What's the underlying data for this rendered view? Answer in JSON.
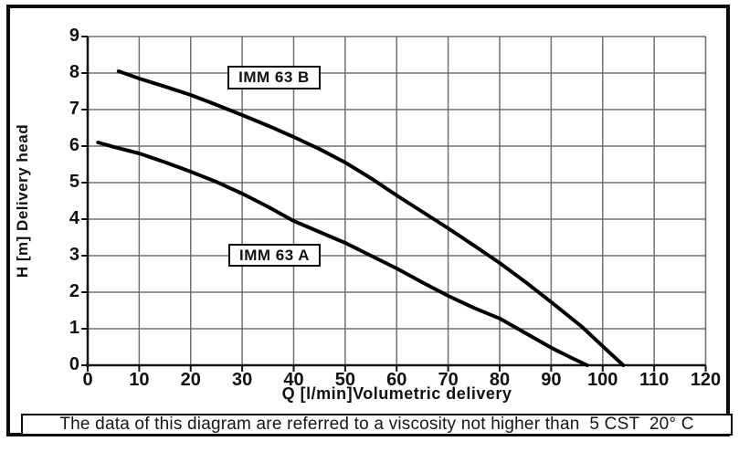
{
  "chart_data": {
    "type": "line",
    "xlabel": "Q [l/min]Volumetric delivery",
    "ylabel": "H [m] Delivery head",
    "xlim": [
      0,
      120
    ],
    "ylim": [
      0,
      9
    ],
    "x_ticks": [
      0,
      10,
      20,
      30,
      40,
      50,
      60,
      70,
      80,
      90,
      100,
      110,
      120
    ],
    "y_ticks": [
      0,
      1,
      2,
      3,
      4,
      5,
      6,
      7,
      8,
      9
    ],
    "grid": true,
    "legend_position": "boxed-labels-on-plot",
    "line_color": "#000000",
    "grid_color": "#6f6f6f",
    "series": [
      {
        "name": "IMM 63 B",
        "points": [
          [
            6,
            8.05
          ],
          [
            10,
            7.85
          ],
          [
            15,
            7.63
          ],
          [
            20,
            7.4
          ],
          [
            25,
            7.13
          ],
          [
            30,
            6.85
          ],
          [
            35,
            6.56
          ],
          [
            40,
            6.25
          ],
          [
            45,
            5.92
          ],
          [
            50,
            5.55
          ],
          [
            55,
            5.12
          ],
          [
            60,
            4.65
          ],
          [
            65,
            4.2
          ],
          [
            70,
            3.75
          ],
          [
            75,
            3.28
          ],
          [
            80,
            2.8
          ],
          [
            85,
            2.28
          ],
          [
            90,
            1.73
          ],
          [
            96,
            1.05
          ],
          [
            100,
            0.52
          ],
          [
            104,
            0
          ]
        ]
      },
      {
        "name": "IMM 63 A",
        "points": [
          [
            2,
            6.1
          ],
          [
            5,
            5.98
          ],
          [
            10,
            5.8
          ],
          [
            15,
            5.56
          ],
          [
            20,
            5.3
          ],
          [
            25,
            5.02
          ],
          [
            30,
            4.7
          ],
          [
            35,
            4.34
          ],
          [
            40,
            3.95
          ],
          [
            45,
            3.65
          ],
          [
            50,
            3.35
          ],
          [
            55,
            3.0
          ],
          [
            60,
            2.65
          ],
          [
            65,
            2.27
          ],
          [
            70,
            1.9
          ],
          [
            75,
            1.57
          ],
          [
            80,
            1.28
          ],
          [
            85,
            0.88
          ],
          [
            90,
            0.48
          ],
          [
            94,
            0.2
          ],
          [
            97,
            0
          ]
        ]
      }
    ]
  },
  "caption": {
    "text": "The data of this diagram are referred to a viscosity not higher than  5 CST  20° C"
  }
}
